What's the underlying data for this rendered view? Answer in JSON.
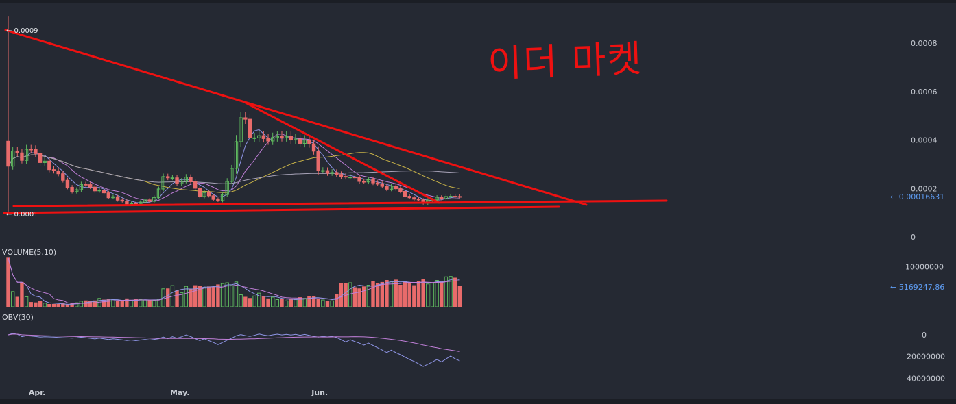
{
  "chart_data": {
    "type": "candlestick",
    "price_panel": {
      "high_marker": "← 0.0009",
      "low_marker": "← 0.0001",
      "current_price_label": "← 0.00016631",
      "yticks": [
        {
          "value": 0.0008,
          "label": "0.0008"
        },
        {
          "value": 0.0006,
          "label": "0.0006"
        },
        {
          "value": 0.0004,
          "label": "0.0004"
        },
        {
          "value": 0.0002,
          "label": "0.0002"
        },
        {
          "value": 0,
          "label": "0"
        }
      ],
      "ylim": [
        0,
        0.00095
      ],
      "annotation_text": "이더 마켓",
      "closes": [
        0.000292,
        0.000355,
        0.000347,
        0.000316,
        0.000362,
        0.000361,
        0.000344,
        0.000307,
        0.000313,
        0.000278,
        0.000273,
        0.000261,
        0.000234,
        0.000205,
        0.000187,
        0.000195,
        0.000217,
        0.000216,
        0.000206,
        0.00019,
        0.000193,
        0.000182,
        0.000162,
        0.000166,
        0.000152,
        0.000148,
        0.000136,
        0.000139,
        0.000136,
        0.000144,
        0.000153,
        0.000147,
        0.000163,
        0.000198,
        0.000249,
        0.000244,
        0.000244,
        0.00022,
        0.000231,
        0.000247,
        0.000228,
        0.000201,
        0.000167,
        0.000183,
        0.00017,
        0.000155,
        0.00015,
        0.000175,
        0.000229,
        0.000283,
        0.000393,
        0.000492,
        0.000486,
        0.000409,
        0.000409,
        0.000418,
        0.000406,
        0.000396,
        0.00041,
        0.000415,
        0.00041,
        0.000415,
        0.0004,
        0.000404,
        0.000386,
        0.0004,
        0.000384,
        0.000354,
        0.000274,
        0.000274,
        0.000263,
        0.000266,
        0.000258,
        0.00025,
        0.000247,
        0.000247,
        0.000245,
        0.000229,
        0.000227,
        0.000236,
        0.000223,
        0.000218,
        0.000209,
        0.000197,
        0.00021,
        0.000199,
        0.000188,
        0.000168,
        0.000162,
        0.000156,
        0.000153,
        0.000139,
        0.000152,
        0.000153,
        0.000164,
        0.000158,
        0.000167,
        0.000168,
        0.000167,
        0.000166
      ],
      "ma_periods": [
        5,
        10,
        30,
        60
      ]
    },
    "volume_panel": {
      "title": "VOLUME(5,10)",
      "yticks": [
        {
          "value": 10000000,
          "label": "10000000"
        }
      ],
      "current_label": "← 5169247.86",
      "ylim": [
        0,
        12000000
      ],
      "values": [
        12200000,
        3800000,
        2400000,
        6100000,
        2500000,
        1100000,
        1000000,
        1400000,
        900000,
        600000,
        600000,
        600000,
        800000,
        500000,
        700000,
        1000000,
        1400000,
        1500000,
        1400000,
        1500000,
        2100000,
        1700000,
        1900000,
        1800000,
        1400000,
        1300000,
        2000000,
        1500000,
        1900000,
        1800000,
        1700000,
        1700000,
        1600000,
        1900000,
        4500000,
        4500000,
        5300000,
        4000000,
        3500000,
        5100000,
        4400000,
        5300000,
        5200000,
        4800000,
        5000000,
        5000000,
        5500000,
        5800000,
        6000000,
        5300000,
        6200000,
        3000000,
        2400000,
        2100000,
        2700000,
        3400000,
        2500000,
        2000000,
        2400000,
        1800000,
        1900000,
        1500000,
        1900000,
        1800000,
        2300000,
        2100000,
        2500000,
        2600000,
        1800000,
        1700000,
        1400000,
        1500000,
        3100000,
        5800000,
        5900000,
        6000000,
        4800000,
        4500000,
        5000000,
        5400000,
        6300000,
        5900000,
        6100000,
        6600000,
        6300000,
        6700000,
        5400000,
        6400000,
        5900000,
        5300000,
        6300000,
        6800000,
        5700000,
        5900000,
        6600000,
        6200000,
        7500000,
        7600000,
        7200000,
        5169247.86
      ]
    },
    "obv_panel": {
      "title": "OBV(30)",
      "yticks": [
        {
          "value": 0,
          "label": "0"
        },
        {
          "value": -20000000,
          "label": "-20000000"
        },
        {
          "value": -40000000,
          "label": "-40000000"
        }
      ],
      "ylim": [
        -48000000,
        12000000
      ]
    },
    "x_axis": {
      "ticks": [
        {
          "index": 6,
          "label": "Apr."
        },
        {
          "index": 37,
          "label": "May."
        },
        {
          "index": 68,
          "label": "Jun."
        }
      ]
    },
    "colors": {
      "up": "#5fb95f",
      "down": "#e86b6b",
      "ma5": "#8f95e6",
      "ma10": "#c07fd8",
      "ma30": "#c9b348",
      "ma60": "#a8a3b8",
      "annotation": "#ee1111",
      "price_label": "#5e9bf0",
      "background": "#252933"
    }
  }
}
